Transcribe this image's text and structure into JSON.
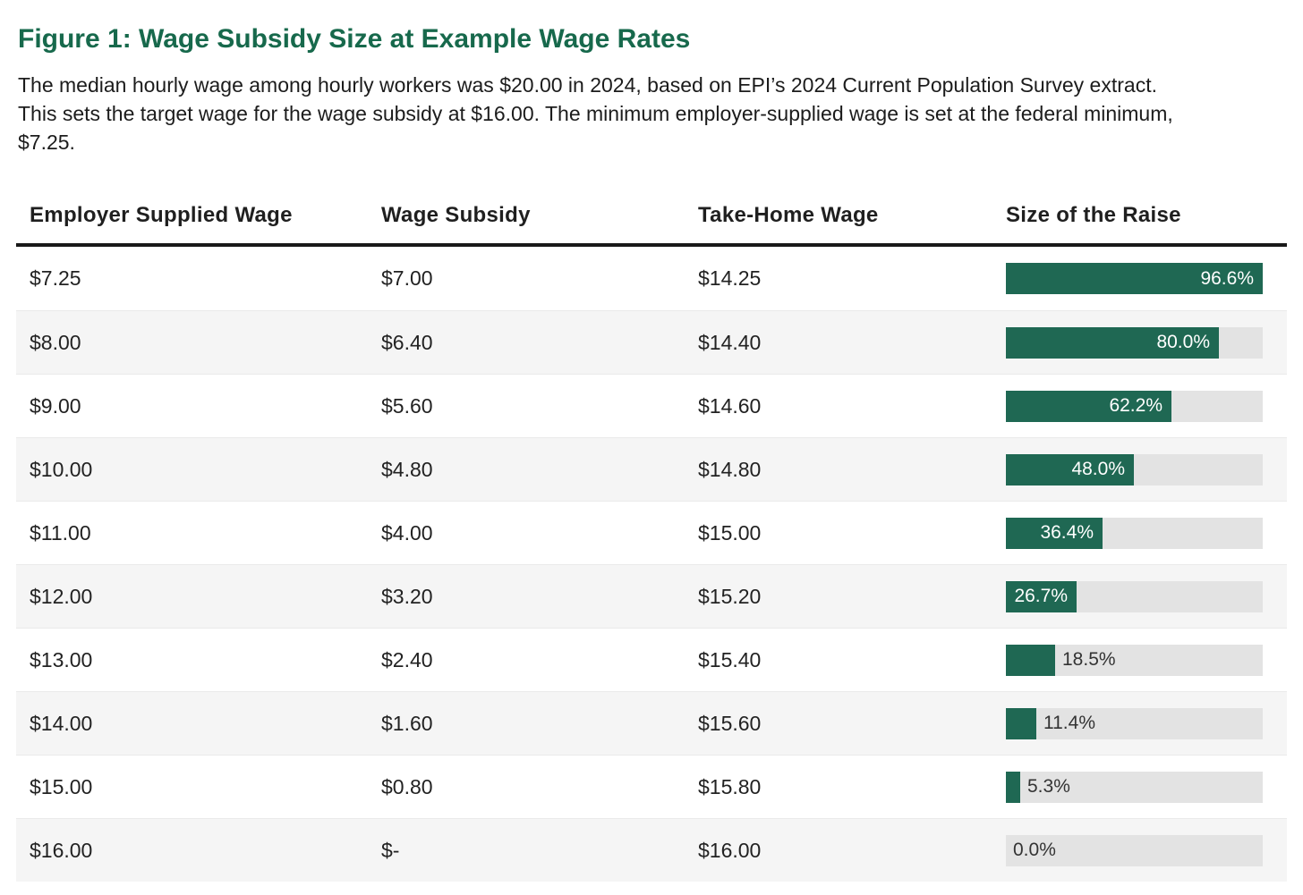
{
  "figure": {
    "title": "Figure 1: Wage Subsidy Size at Example Wage Rates",
    "description": "The median hourly wage among hourly workers was $20.00 in 2024, based on EPI’s 2024 Current Population Survey extract. This sets the target wage for the wage subsidy at $16.00. The minimum employer-supplied wage is set at the federal minimum, $7.25."
  },
  "table": {
    "columns": [
      "Employer Supplied Wage",
      "Wage Subsidy",
      "Take-Home Wage",
      "Size of the Raise"
    ],
    "rows": [
      {
        "employer_wage": "$7.25",
        "wage_subsidy": "$7.00",
        "take_home_wage": "$14.25",
        "raise_label": "96.6%",
        "raise_value": 96.6
      },
      {
        "employer_wage": "$8.00",
        "wage_subsidy": "$6.40",
        "take_home_wage": "$14.40",
        "raise_label": "80.0%",
        "raise_value": 80.0
      },
      {
        "employer_wage": "$9.00",
        "wage_subsidy": "$5.60",
        "take_home_wage": "$14.60",
        "raise_label": "62.2%",
        "raise_value": 62.2
      },
      {
        "employer_wage": "$10.00",
        "wage_subsidy": "$4.80",
        "take_home_wage": "$14.80",
        "raise_label": "48.0%",
        "raise_value": 48.0
      },
      {
        "employer_wage": "$11.00",
        "wage_subsidy": "$4.00",
        "take_home_wage": "$15.00",
        "raise_label": "36.4%",
        "raise_value": 36.4
      },
      {
        "employer_wage": "$12.00",
        "wage_subsidy": "$3.20",
        "take_home_wage": "$15.20",
        "raise_label": "26.7%",
        "raise_value": 26.7
      },
      {
        "employer_wage": "$13.00",
        "wage_subsidy": "$2.40",
        "take_home_wage": "$15.40",
        "raise_label": "18.5%",
        "raise_value": 18.5
      },
      {
        "employer_wage": "$14.00",
        "wage_subsidy": "$1.60",
        "take_home_wage": "$15.60",
        "raise_label": "11.4%",
        "raise_value": 11.4
      },
      {
        "employer_wage": "$15.00",
        "wage_subsidy": "$0.80",
        "take_home_wage": "$15.80",
        "raise_label": "5.3%",
        "raise_value": 5.3
      },
      {
        "employer_wage": "$16.00",
        "wage_subsidy": "$-",
        "take_home_wage": "$16.00",
        "raise_label": "0.0%",
        "raise_value": 0.0
      }
    ]
  },
  "chart_data": {
    "type": "bar",
    "orientation": "horizontal",
    "title": "Figure 1: Wage Subsidy Size at Example Wage Rates",
    "categories": [
      "$7.25",
      "$8.00",
      "$9.00",
      "$10.00",
      "$11.00",
      "$12.00",
      "$13.00",
      "$14.00",
      "$15.00",
      "$16.00"
    ],
    "series": [
      {
        "name": "Size of the Raise (%)",
        "values": [
          96.6,
          80.0,
          62.2,
          48.0,
          36.4,
          26.7,
          18.5,
          11.4,
          5.3,
          0.0
        ]
      },
      {
        "name": "Wage Subsidy ($)",
        "values": [
          7.0,
          6.4,
          5.6,
          4.8,
          4.0,
          3.2,
          2.4,
          1.6,
          0.8,
          0.0
        ]
      },
      {
        "name": "Take-Home Wage ($)",
        "values": [
          14.25,
          14.4,
          14.6,
          14.8,
          15.0,
          15.2,
          15.4,
          15.6,
          15.8,
          16.0
        ]
      }
    ],
    "xlabel": "Size of the Raise",
    "ylabel": "Employer Supplied Wage",
    "bar_scale_max": 96.6,
    "grid": false,
    "legend_position": "none",
    "data_labels": true
  },
  "colors": {
    "title_green": "#17694c",
    "bar_green": "#1f6853",
    "track_gray": "#e3e3e3",
    "stripe_gray": "#f5f5f5",
    "header_rule": "#191919"
  }
}
